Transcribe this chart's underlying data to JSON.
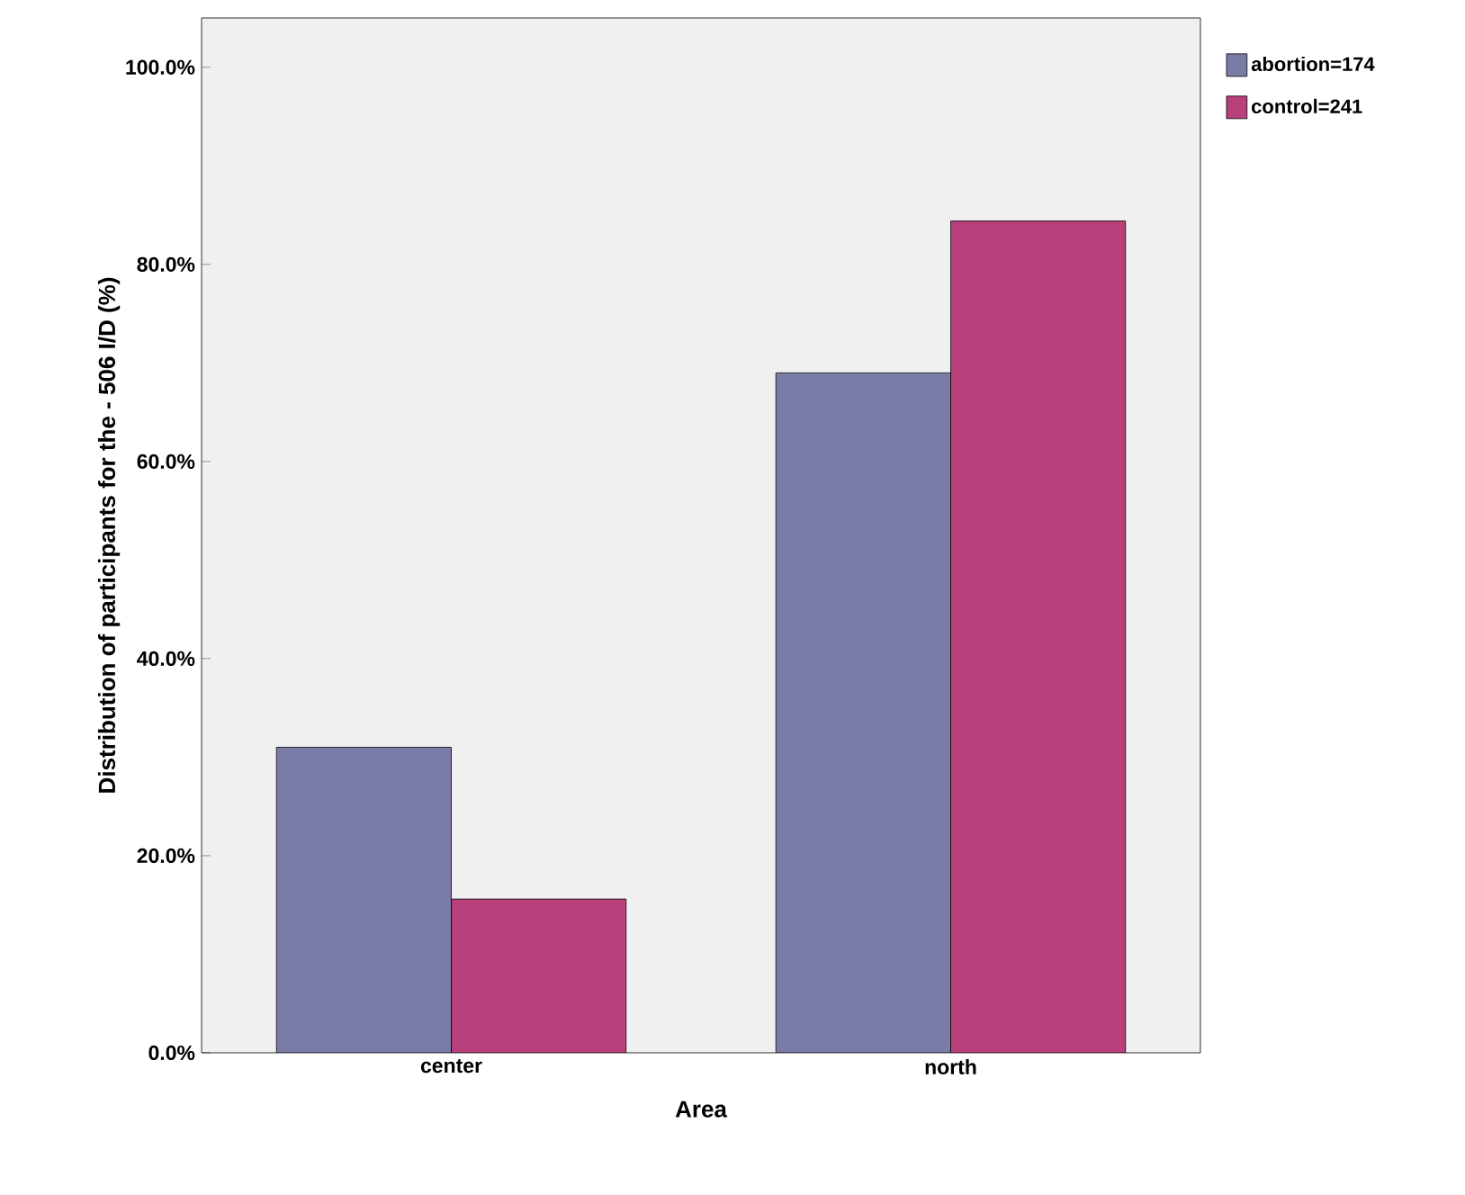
{
  "chart_data": {
    "type": "bar",
    "xlabel": "Area",
    "ylabel": "Distribution of participants for the - 506 I/D (%)",
    "categories": [
      "center",
      "north"
    ],
    "series": [
      {
        "name": "abortion=174",
        "color": "#7b7ba8",
        "values": [
          31.0,
          69.0
        ]
      },
      {
        "name": "control=241",
        "color": "#b9407a",
        "values": [
          15.6,
          84.4
        ]
      }
    ],
    "ylim": [
      0,
      105
    ],
    "yticks": [
      {
        "value": 0,
        "label": "0.0%"
      },
      {
        "value": 20,
        "label": "20.0%"
      },
      {
        "value": 40,
        "label": "40.0%"
      },
      {
        "value": 60,
        "label": "60.0%"
      },
      {
        "value": 80,
        "label": "80.0%"
      },
      {
        "value": 100,
        "label": "100.0%"
      }
    ],
    "legend": "top right",
    "grid": false
  }
}
